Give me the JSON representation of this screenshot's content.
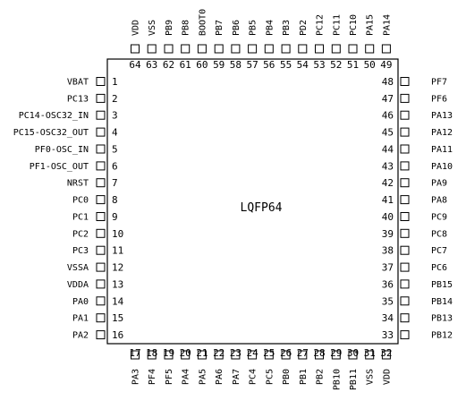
{
  "chip": {
    "name": "LQFP64",
    "colors": {
      "line": "#000000",
      "background": "#ffffff"
    }
  },
  "left_pins": [
    {
      "num": "1",
      "label": "VBAT"
    },
    {
      "num": "2",
      "label": "PC13"
    },
    {
      "num": "3",
      "label": "PC14-OSC32_IN"
    },
    {
      "num": "4",
      "label": "PC15-OSC32_OUT"
    },
    {
      "num": "5",
      "label": "PF0-OSC_IN"
    },
    {
      "num": "6",
      "label": "PF1-OSC_OUT"
    },
    {
      "num": "7",
      "label": "NRST"
    },
    {
      "num": "8",
      "label": "PC0"
    },
    {
      "num": "9",
      "label": "PC1"
    },
    {
      "num": "10",
      "label": "PC2"
    },
    {
      "num": "11",
      "label": "PC3"
    },
    {
      "num": "12",
      "label": "VSSA"
    },
    {
      "num": "13",
      "label": "VDDA"
    },
    {
      "num": "14",
      "label": "PA0"
    },
    {
      "num": "15",
      "label": "PA1"
    },
    {
      "num": "16",
      "label": "PA2"
    }
  ],
  "right_pins": [
    {
      "num": "48",
      "label": "PF7"
    },
    {
      "num": "47",
      "label": "PF6"
    },
    {
      "num": "46",
      "label": "PA13"
    },
    {
      "num": "45",
      "label": "PA12"
    },
    {
      "num": "44",
      "label": "PA11"
    },
    {
      "num": "43",
      "label": "PA10"
    },
    {
      "num": "42",
      "label": "PA9"
    },
    {
      "num": "41",
      "label": "PA8"
    },
    {
      "num": "40",
      "label": "PC9"
    },
    {
      "num": "39",
      "label": "PC8"
    },
    {
      "num": "38",
      "label": "PC7"
    },
    {
      "num": "37",
      "label": "PC6"
    },
    {
      "num": "36",
      "label": "PB15"
    },
    {
      "num": "35",
      "label": "PB14"
    },
    {
      "num": "34",
      "label": "PB13"
    },
    {
      "num": "33",
      "label": "PB12"
    }
  ],
  "top_pins": [
    {
      "num": "64",
      "label": "VDD"
    },
    {
      "num": "63",
      "label": "VSS"
    },
    {
      "num": "62",
      "label": "PB9"
    },
    {
      "num": "61",
      "label": "PB8"
    },
    {
      "num": "60",
      "label": "BOOT0"
    },
    {
      "num": "59",
      "label": "PB7"
    },
    {
      "num": "58",
      "label": "PB6"
    },
    {
      "num": "57",
      "label": "PB5"
    },
    {
      "num": "56",
      "label": "PB4"
    },
    {
      "num": "55",
      "label": "PB3"
    },
    {
      "num": "54",
      "label": "PD2"
    },
    {
      "num": "53",
      "label": "PC12"
    },
    {
      "num": "52",
      "label": "PC11"
    },
    {
      "num": "51",
      "label": "PC10"
    },
    {
      "num": "50",
      "label": "PA15"
    },
    {
      "num": "49",
      "label": "PA14"
    }
  ],
  "bottom_pins": [
    {
      "num": "17",
      "label": "PA3"
    },
    {
      "num": "18",
      "label": "PF4"
    },
    {
      "num": "19",
      "label": "PF5"
    },
    {
      "num": "20",
      "label": "PA4"
    },
    {
      "num": "21",
      "label": "PA5"
    },
    {
      "num": "22",
      "label": "PA6"
    },
    {
      "num": "23",
      "label": "PA7"
    },
    {
      "num": "24",
      "label": "PC4"
    },
    {
      "num": "25",
      "label": "PC5"
    },
    {
      "num": "26",
      "label": "PB0"
    },
    {
      "num": "27",
      "label": "PB1"
    },
    {
      "num": "28",
      "label": "PB2"
    },
    {
      "num": "29",
      "label": "PB10"
    },
    {
      "num": "30",
      "label": "PB11"
    },
    {
      "num": "31",
      "label": "VSS"
    },
    {
      "num": "32",
      "label": "VDD"
    }
  ]
}
